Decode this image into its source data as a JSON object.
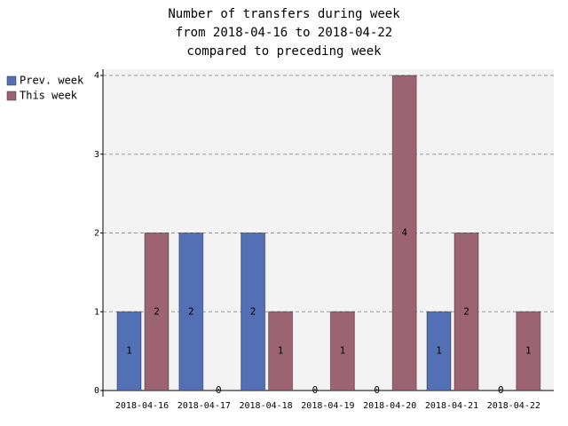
{
  "chart_data": {
    "type": "bar",
    "title": [
      "Number of transfers during week",
      "from 2018-04-16 to 2018-04-22",
      "compared to preceding week"
    ],
    "categories": [
      "2018-04-16",
      "2018-04-17",
      "2018-04-18",
      "2018-04-19",
      "2018-04-20",
      "2018-04-21",
      "2018-04-22"
    ],
    "series": [
      {
        "name": "Prev. week",
        "color": "#5470b4",
        "values": [
          1,
          2,
          2,
          0,
          0,
          1,
          0
        ]
      },
      {
        "name": "This week",
        "color": "#9c6373",
        "values": [
          2,
          0,
          1,
          1,
          4,
          2,
          1
        ]
      }
    ],
    "ylim": [
      0,
      4
    ],
    "yticks": [
      0,
      1,
      2,
      3,
      4
    ],
    "grid": true,
    "legend": "top-left"
  }
}
